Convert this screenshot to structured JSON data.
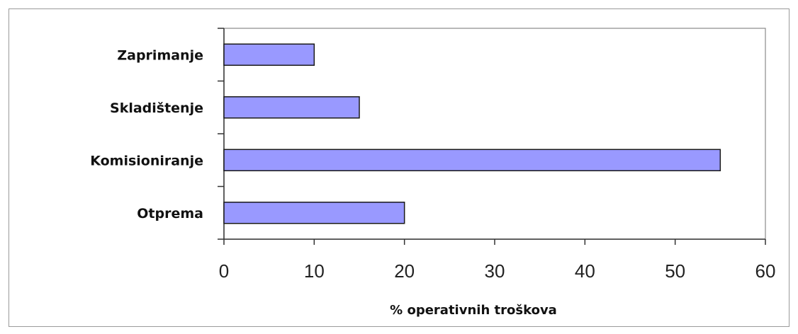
{
  "chart_data": {
    "type": "bar",
    "orientation": "horizontal",
    "categories": [
      "Zaprimanje",
      "Skladištenje",
      "Komisioniranje",
      "Otprema"
    ],
    "values": [
      10,
      15,
      55,
      20
    ],
    "xlabel": "% operativnih troškova",
    "ylabel": "",
    "xlim": [
      0,
      60
    ],
    "xticks": [
      0,
      10,
      20,
      30,
      40,
      50,
      60
    ],
    "xtick_labels": [
      "0",
      "10",
      "20",
      "30",
      "40",
      "50",
      "60"
    ],
    "grid": false,
    "legend": "none",
    "bar_color": "#9999ff",
    "bar_edge_color": "#1a1a1a"
  }
}
